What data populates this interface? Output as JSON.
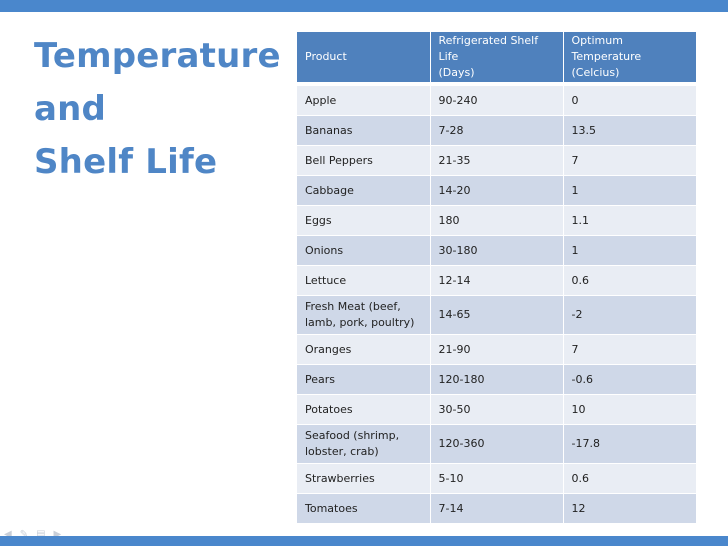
{
  "theme": {
    "accent": "#4a87cc",
    "title_color": "#4f86c6",
    "header_bg": "#4f81bd",
    "row_light": "#e9edf4",
    "row_dark": "#cfd8e8"
  },
  "slide": {
    "title_lines": [
      "Temperature",
      "and",
      "Shelf Life"
    ]
  },
  "table": {
    "headers": [
      [
        "Product"
      ],
      [
        "Refrigerated Shelf Life",
        "(Days)"
      ],
      [
        "Optimum",
        "Temperature (Celcius)"
      ]
    ],
    "rows": [
      {
        "product": [
          "Apple"
        ],
        "shelf_life": "90-240",
        "temp": "0"
      },
      {
        "product": [
          "Bananas"
        ],
        "shelf_life": "7-28",
        "temp": "13.5"
      },
      {
        "product": [
          "Bell Peppers"
        ],
        "shelf_life": "21-35",
        "temp": "7"
      },
      {
        "product": [
          "Cabbage"
        ],
        "shelf_life": "14-20",
        "temp": "1"
      },
      {
        "product": [
          "Eggs"
        ],
        "shelf_life": "180",
        "temp": "1.1"
      },
      {
        "product": [
          "Onions"
        ],
        "shelf_life": "30-180",
        "temp": "1"
      },
      {
        "product": [
          "Lettuce"
        ],
        "shelf_life": "12-14",
        "temp": "0.6"
      },
      {
        "product": [
          "Fresh Meat (beef,",
          "lamb, pork, poultry)"
        ],
        "shelf_life": "14-65",
        "temp": "-2"
      },
      {
        "product": [
          "Oranges"
        ],
        "shelf_life": "21-90",
        "temp": "7"
      },
      {
        "product": [
          "Pears"
        ],
        "shelf_life": "120-180",
        "temp": "-0.6"
      },
      {
        "product": [
          "Potatoes"
        ],
        "shelf_life": "30-50",
        "temp": "10"
      },
      {
        "product": [
          "Seafood (shrimp,",
          "lobster, crab)"
        ],
        "shelf_life": "120-360",
        "temp": "-17.8"
      },
      {
        "product": [
          "Strawberries"
        ],
        "shelf_life": "5-10",
        "temp": "0.6"
      },
      {
        "product": [
          "Tomatoes"
        ],
        "shelf_life": "7-14",
        "temp": "12"
      }
    ]
  },
  "slideshow_nav": {
    "icons": [
      "previous-arrow-icon",
      "pen-icon",
      "slides-menu-icon",
      "next-arrow-icon"
    ]
  }
}
